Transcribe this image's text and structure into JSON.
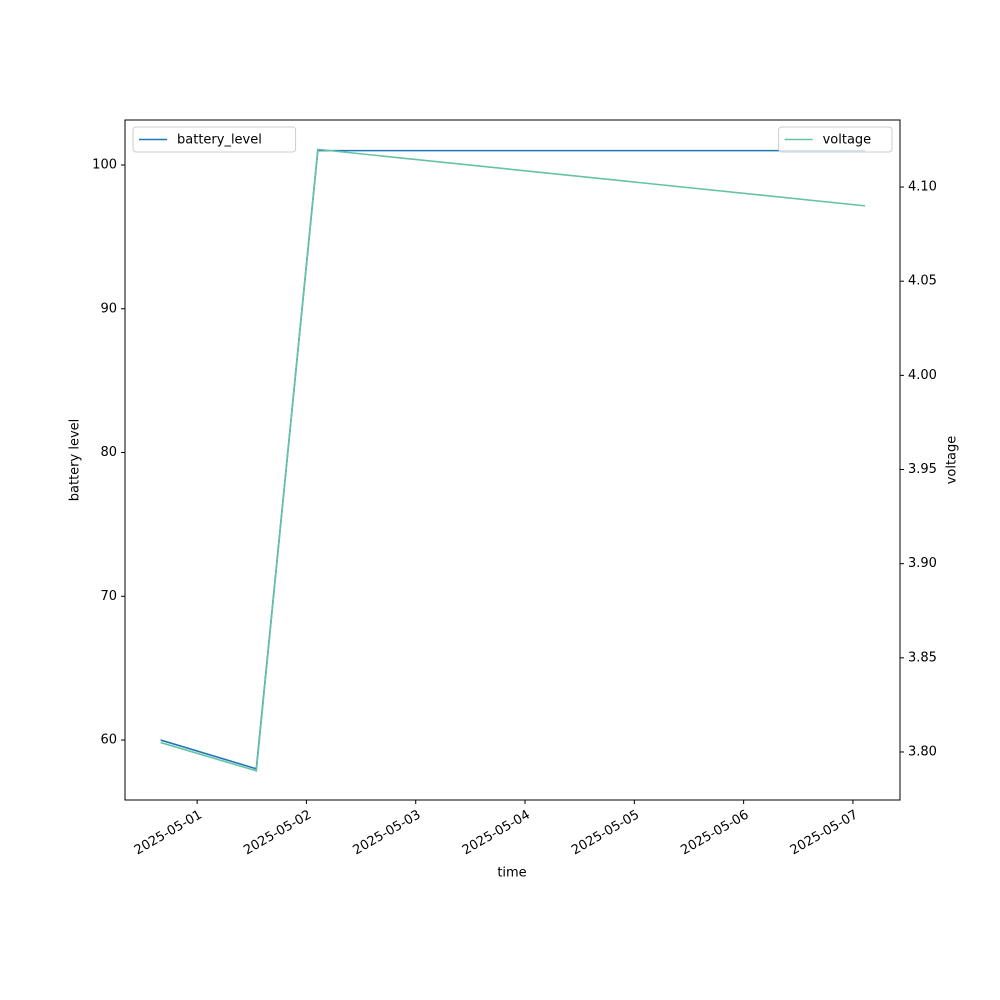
{
  "chart_data": {
    "type": "line",
    "x_label": "time",
    "y_label": "battery level",
    "y2_label": "voltage",
    "x": [
      "2025-04-30 16:00",
      "2025-05-01 13:00",
      "2025-05-02 02:30",
      "2025-05-07 02:40"
    ],
    "series": [
      {
        "name": "battery_level",
        "color": "#1f77b4",
        "values": [
          60,
          58,
          101,
          101
        ],
        "axis": "y",
        "legend": "upper left"
      },
      {
        "name": "voltage",
        "color": "#66c2a5",
        "values": [
          3.805,
          3.79,
          4.12,
          4.09
        ],
        "axis": "y2",
        "legend": "upper right"
      }
    ],
    "xlim": [
      "2025-04-30 08:10",
      "2025-05-07 10:20"
    ],
    "xticks": [
      "2025-05-01",
      "2025-05-02",
      "2025-05-03",
      "2025-05-04",
      "2025-05-05",
      "2025-05-06",
      "2025-05-07"
    ],
    "ylim": [
      55.83,
      103.13
    ],
    "yticks": [
      60,
      70,
      80,
      90,
      100
    ],
    "y2lim": [
      3.7745,
      4.1356
    ],
    "y2ticks": [
      {
        "value": 3.8,
        "label": "3.80"
      },
      {
        "value": 3.85,
        "label": "3.85"
      },
      {
        "value": 3.9,
        "label": "3.90"
      },
      {
        "value": 3.95,
        "label": "3.95"
      },
      {
        "value": 4.0,
        "label": "4.00"
      },
      {
        "value": 4.05,
        "label": "4.05"
      },
      {
        "value": 4.1,
        "label": "4.10"
      }
    ],
    "grid": false
  }
}
